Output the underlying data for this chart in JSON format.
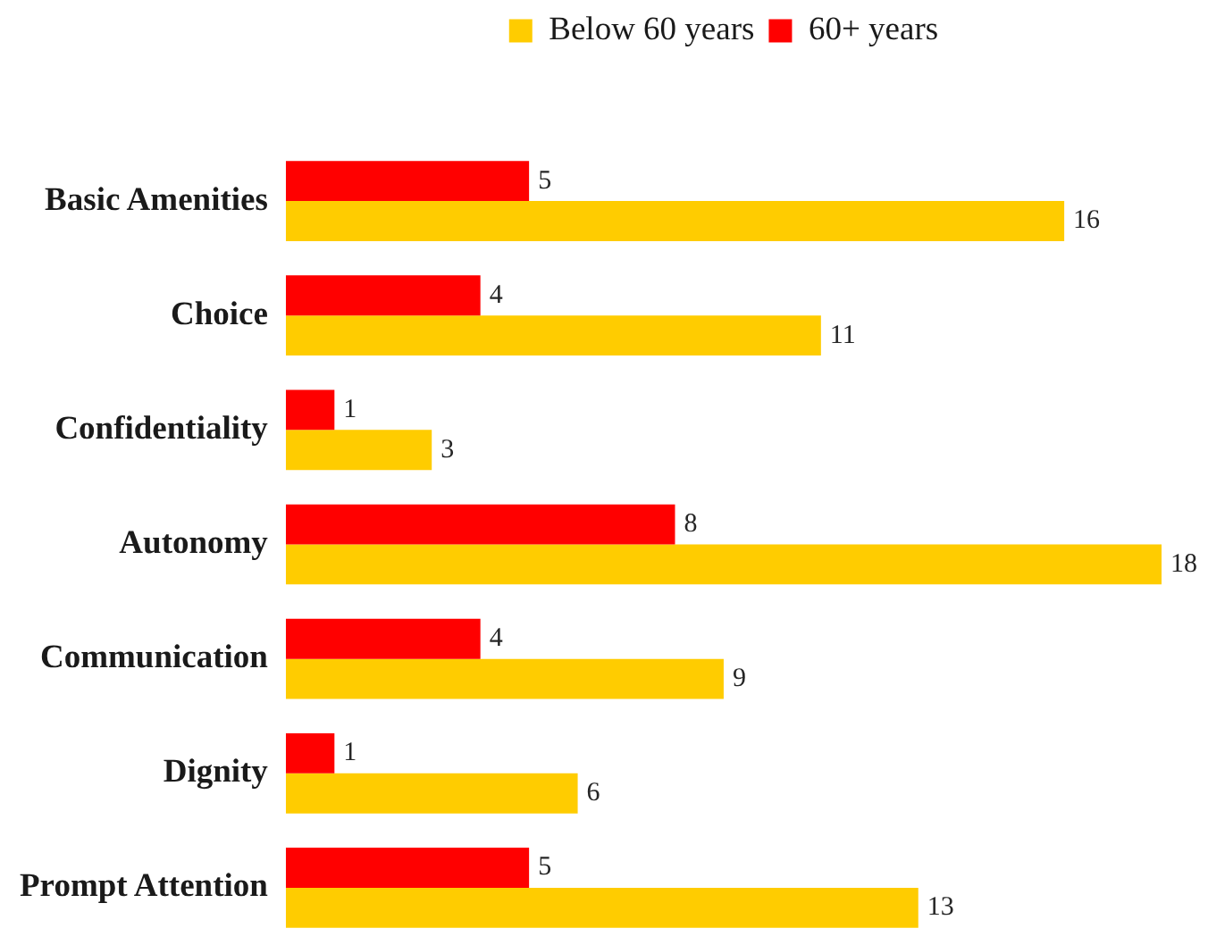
{
  "chart_data": {
    "type": "bar",
    "orientation": "horizontal",
    "categories": [
      "Basic Amenities",
      "Choice",
      "Confidentiality",
      "Autonomy",
      "Communication",
      "Dignity",
      "Prompt Attention"
    ],
    "series": [
      {
        "name": "Below 60 years",
        "color": "#ffcc00",
        "values": [
          16,
          11,
          3,
          18,
          9,
          6,
          13
        ]
      },
      {
        "name": "60+ years",
        "color": "#ff0000",
        "values": [
          5,
          4,
          1,
          8,
          4,
          1,
          5
        ]
      }
    ],
    "data_labels": true,
    "legend": "top",
    "grid": false
  }
}
